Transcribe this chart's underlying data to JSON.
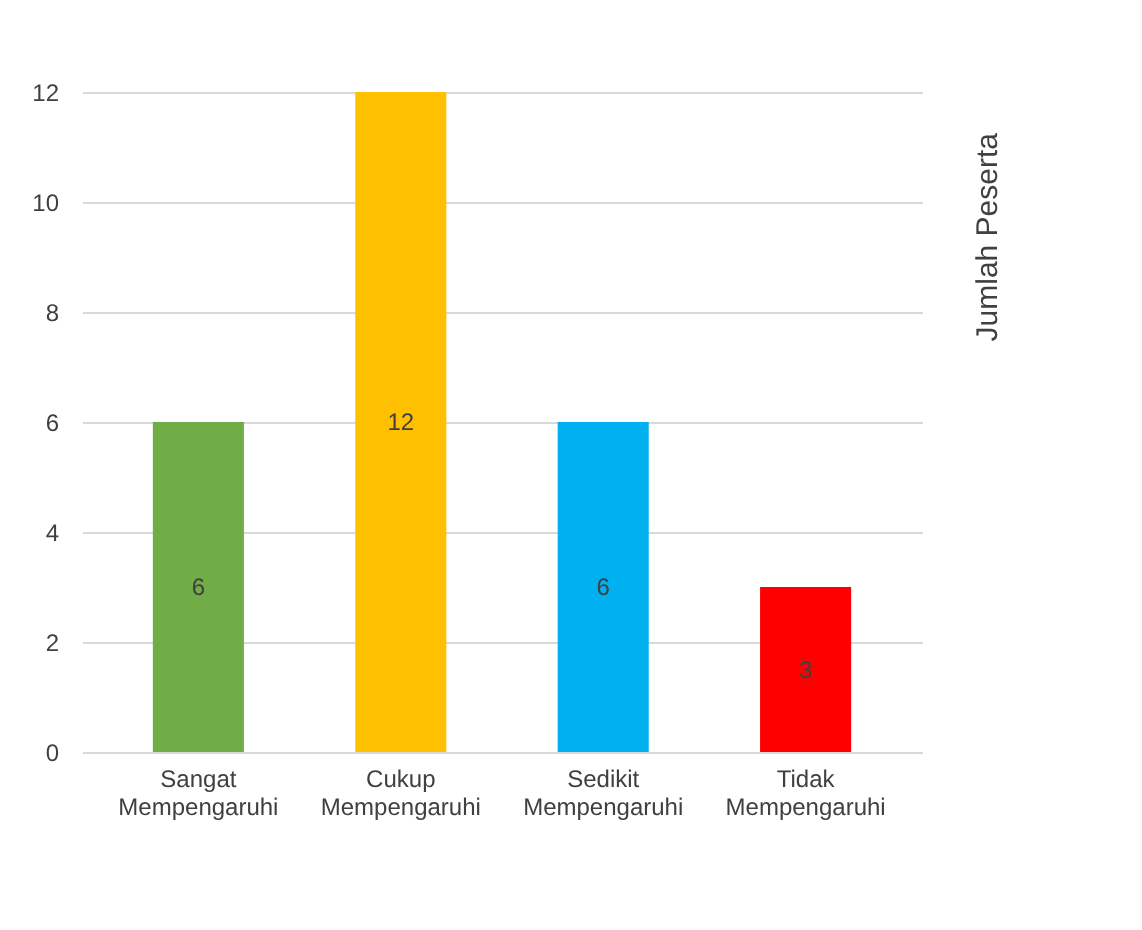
{
  "chart_data": {
    "type": "bar",
    "ylabel": "Jumlah Peserta",
    "categories": [
      "Sangat Mempengaruhi",
      "Cukup Mempengaruhi",
      "Sedikit Mempengaruhi",
      "Tidak Mempengaruhi"
    ],
    "values": [
      6,
      12,
      6,
      3
    ],
    "colors": [
      "#70ad47",
      "#ffc000",
      "#00b0f0",
      "#ff0000"
    ],
    "ylim": [
      0,
      12
    ],
    "yticks": [
      0,
      2,
      4,
      6,
      8,
      10,
      12
    ],
    "grid": true,
    "data_labels": true
  }
}
